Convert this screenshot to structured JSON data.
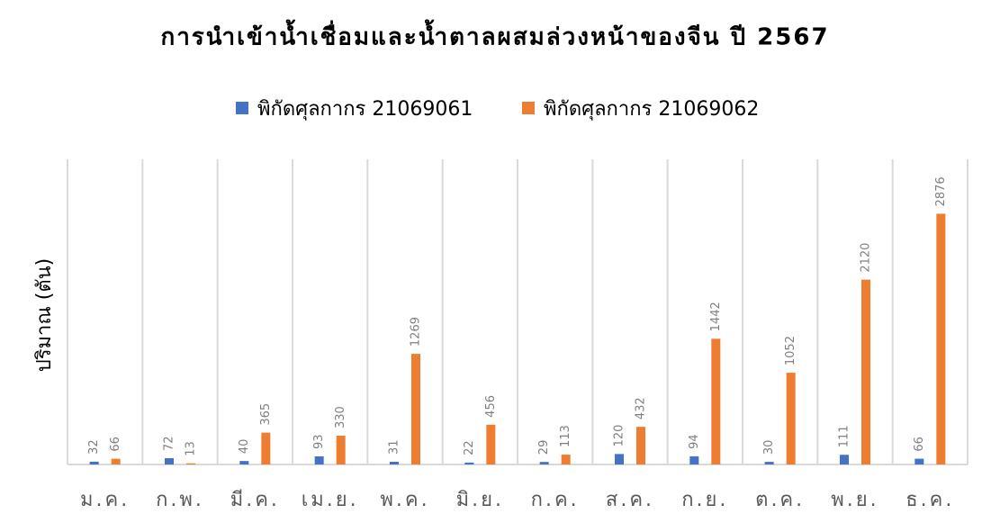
{
  "chart_data": {
    "type": "bar",
    "title": "การนำเข้าน้ำเชื่อมและน้ำตาลผสมล่วงหน้าของจีน ปี 2567",
    "y_label": "ปริมาณ (ตัน)",
    "categories": [
      "ม.ค.",
      "ก.พ.",
      "มี.ค.",
      "เม.ย.",
      "พ.ค.",
      "มิ.ย.",
      "ก.ค.",
      "ส.ค.",
      "ก.ย.",
      "ต.ค.",
      "พ.ย.",
      "ธ.ค."
    ],
    "series": [
      {
        "name": "พิกัดศุลกากร 21069061",
        "color": "#4472c4",
        "values": [
          32,
          72,
          40,
          93,
          31,
          22,
          29,
          120,
          94,
          30,
          111,
          66
        ]
      },
      {
        "name": "พิกัดศุลกากร 21069062",
        "color": "#ed7d31",
        "values": [
          66,
          13,
          365,
          330,
          1269,
          456,
          113,
          432,
          1442,
          1052,
          2120,
          2876
        ]
      }
    ],
    "ylim": [
      0,
      3500
    ],
    "legend": "top"
  }
}
